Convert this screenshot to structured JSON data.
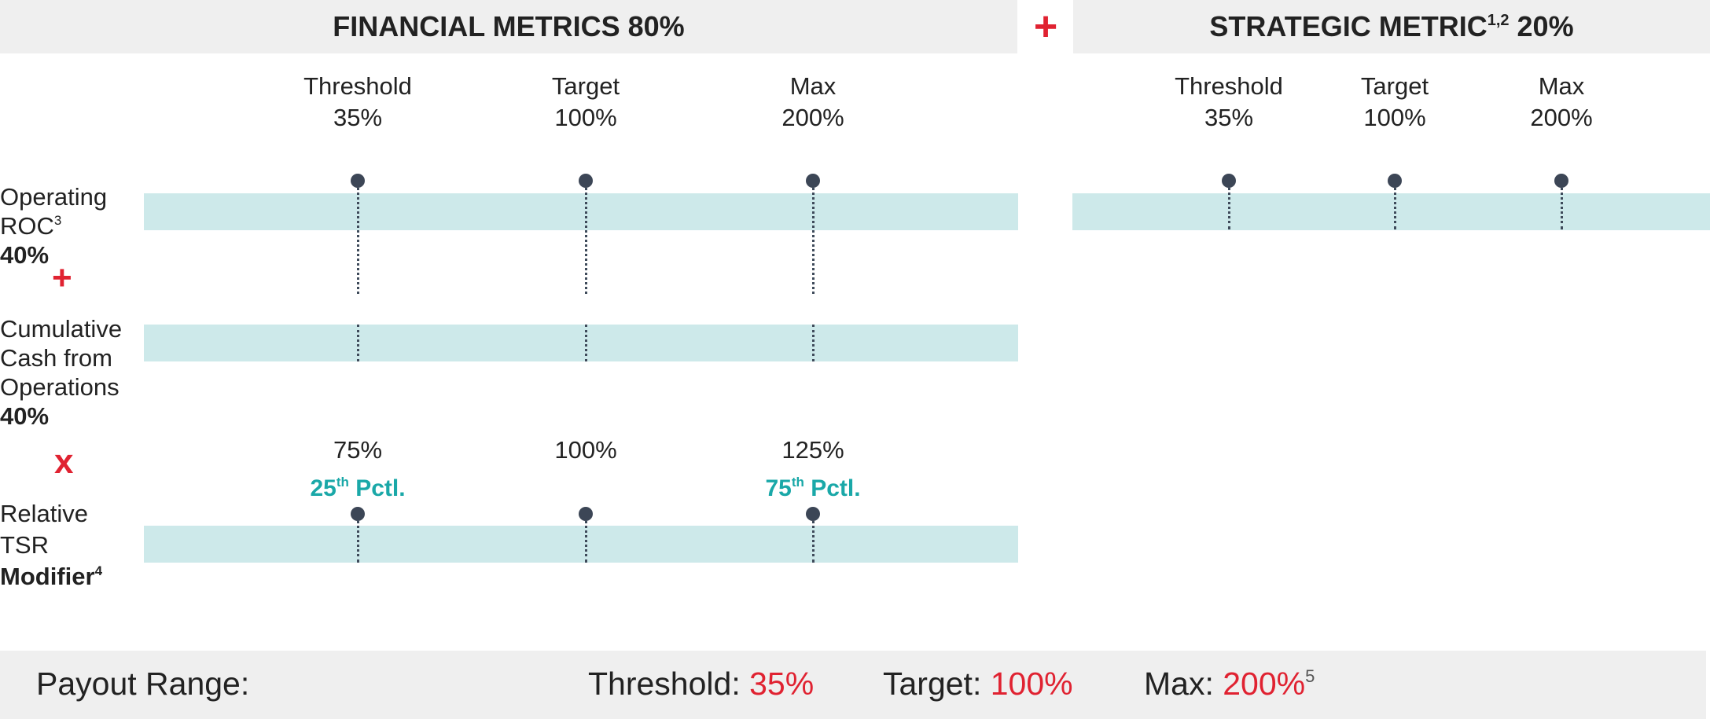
{
  "header": {
    "financial_title": "FINANCIAL METRICS 80%",
    "plus_symbol": "+",
    "strategic_title": "STRATEGIC METRIC",
    "strategic_sup": "1,2",
    "strategic_pct": " 20%"
  },
  "financial_levels": [
    {
      "name": "Threshold",
      "value": "35%"
    },
    {
      "name": "Target",
      "value": "100%"
    },
    {
      "name": "Max",
      "value": "200%"
    }
  ],
  "strategic_levels": [
    {
      "name": "Threshold",
      "value": "35%"
    },
    {
      "name": "Target",
      "value": "100%"
    },
    {
      "name": "Max",
      "value": "200%"
    }
  ],
  "rows": {
    "operating_roc": {
      "line1": "Operating",
      "line2": "ROC",
      "sup": "3",
      "weight": "40%"
    },
    "plus_op": "+",
    "cash": {
      "line1": "Cumulative",
      "line2": "Cash from",
      "line3": "Operations",
      "weight": "40%"
    },
    "times_op": "x",
    "tsr": {
      "line1": "Relative",
      "line2": "TSR",
      "line3": "Modifier",
      "sup": "4"
    }
  },
  "tsr_scale": {
    "values": [
      "75%",
      "100%",
      "125%"
    ],
    "low_pctl": {
      "num": "25",
      "ord": "th",
      "label": " Pctl."
    },
    "high_pctl": {
      "num": "75",
      "ord": "th",
      "label": " Pctl."
    }
  },
  "payout": {
    "label": "Payout Range:",
    "threshold_label": "Threshold: ",
    "threshold_value": "35%",
    "target_label": "Target: ",
    "target_value": "100%",
    "max_label": "Max: ",
    "max_value": "200%",
    "max_sup": "5"
  },
  "colors": {
    "accent_red": "#e02231",
    "teal_text": "#1aa8a8",
    "band": "#cde9ea",
    "dot": "#3c4656",
    "header_bg": "#efefef"
  }
}
